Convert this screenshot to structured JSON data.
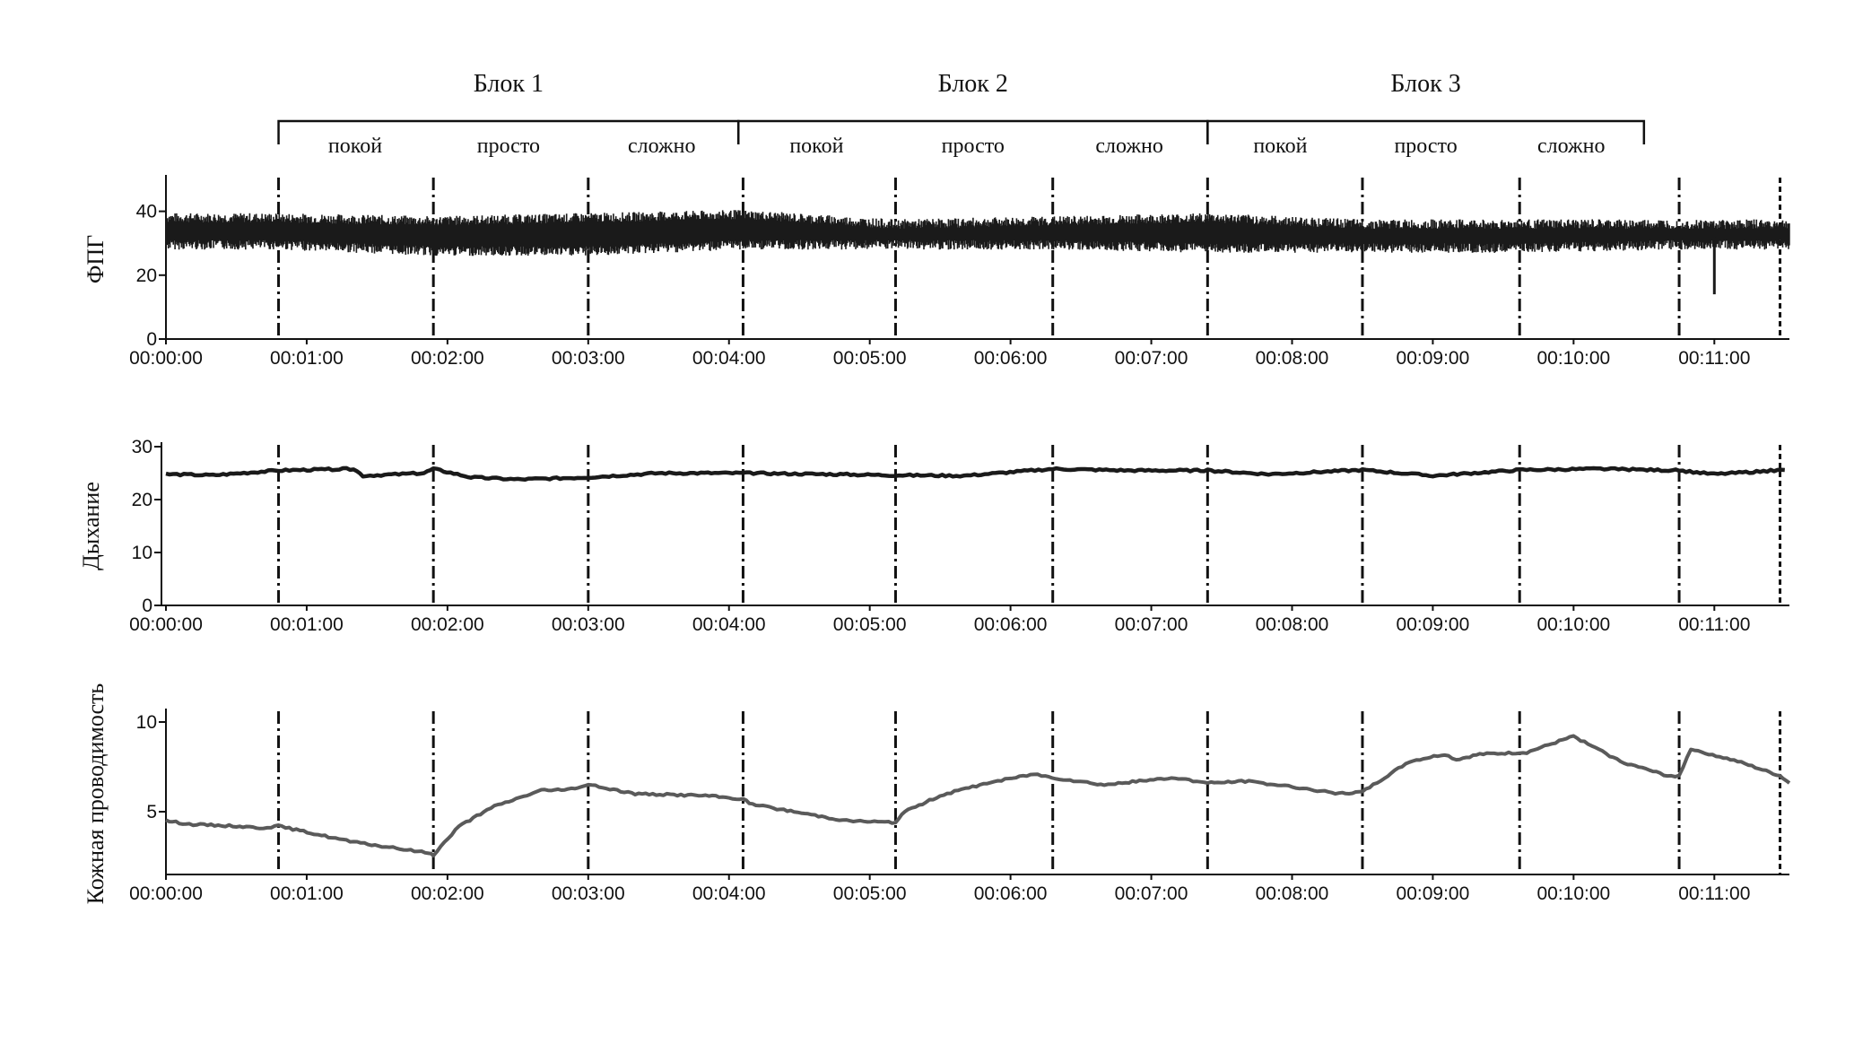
{
  "blocks": [
    {
      "title": "Блок 1",
      "phases": [
        "покой",
        "просто",
        "сложно"
      ],
      "start_s": 48,
      "end_s": 244
    },
    {
      "title": "Блок 2",
      "phases": [
        "покой",
        "просто",
        "сложно"
      ],
      "start_s": 244,
      "end_s": 444
    },
    {
      "title": "Блок 3",
      "phases": [
        "покой",
        "просто",
        "сложно"
      ],
      "start_s": 444,
      "end_s": 630
    }
  ],
  "chart_data": [
    {
      "type": "line",
      "ylabel": "ФПГ",
      "xlabel": "",
      "ylim": [
        0,
        50
      ],
      "xlim_s": [
        0,
        692
      ],
      "yticks": [
        "0",
        "20",
        "40"
      ],
      "xticks": [
        "00:00:00",
        "00:01:00",
        "00:02:00",
        "00:03:00",
        "00:04:00",
        "00:05:00",
        "00:06:00",
        "00:07:00",
        "00:08:00",
        "00:09:00",
        "00:10:00",
        "00:11:00"
      ],
      "markers_s": [
        48,
        114,
        180,
        246,
        311,
        378,
        444,
        510,
        577,
        645,
        688
      ],
      "series": [
        {
          "style": "band",
          "x_s": [
            0,
            48,
            114,
            180,
            246,
            311,
            378,
            444,
            510,
            577,
            645,
            692
          ],
          "upper": [
            38,
            38,
            37,
            38,
            39,
            36,
            37,
            38,
            36,
            36,
            36,
            36
          ],
          "lower": [
            31,
            31,
            29,
            29,
            31,
            31,
            31,
            30,
            30,
            30,
            31,
            31
          ],
          "spikes": [
            {
              "x_s": 660,
              "low": 14
            }
          ]
        }
      ]
    },
    {
      "type": "line",
      "ylabel": "Дыхание",
      "xlabel": "",
      "ylim": [
        0,
        30
      ],
      "xlim_s": [
        0,
        692
      ],
      "yticks": [
        "0",
        "10",
        "20",
        "30"
      ],
      "xticks": [
        "00:00:00",
        "00:01:00",
        "00:02:00",
        "00:03:00",
        "00:04:00",
        "00:05:00",
        "00:06:00",
        "00:07:00",
        "00:08:00",
        "00:09:00",
        "00:10:00",
        "00:11:00"
      ],
      "markers_s": [
        48,
        114,
        180,
        246,
        311,
        378,
        444,
        510,
        577,
        645,
        688
      ],
      "series": [
        {
          "style": "line",
          "x_s": [
            0,
            20,
            48,
            80,
            84,
            110,
            114,
            130,
            150,
            180,
            210,
            246,
            280,
            311,
            340,
            378,
            410,
            444,
            470,
            510,
            540,
            577,
            610,
            645,
            660,
            690
          ],
          "y": [
            24.8,
            24.6,
            25.5,
            25.8,
            24.5,
            25,
            25.8,
            24.2,
            23.8,
            24.2,
            25,
            25,
            24.8,
            24.6,
            24.5,
            25.8,
            25.5,
            25.5,
            24.8,
            25.6,
            24.5,
            25.6,
            25.8,
            25.5,
            24.8,
            25.6
          ]
        }
      ]
    },
    {
      "type": "line",
      "ylabel": "Кожная проводимость",
      "xlabel": "",
      "ylim": [
        1.5,
        10.5
      ],
      "xlim_s": [
        0,
        692
      ],
      "yticks": [
        "5",
        "10"
      ],
      "xticks": [
        "00:00:00",
        "00:01:00",
        "00:02:00",
        "00:03:00",
        "00:04:00",
        "00:05:00",
        "00:06:00",
        "00:07:00",
        "00:08:00",
        "00:09:00",
        "00:10:00",
        "00:11:00"
      ],
      "markers_s": [
        48,
        114,
        180,
        246,
        311,
        378,
        444,
        510,
        577,
        645,
        688
      ],
      "series": [
        {
          "style": "line",
          "x_s": [
            0,
            10,
            30,
            40,
            48,
            80,
            112,
            114,
            125,
            140,
            160,
            170,
            180,
            200,
            230,
            246,
            250,
            290,
            311,
            315,
            330,
            350,
            370,
            378,
            400,
            430,
            444,
            460,
            480,
            500,
            510,
            530,
            545,
            550,
            560,
            580,
            600,
            620,
            640,
            645,
            650,
            670,
            688,
            692
          ],
          "y": [
            4.5,
            4.3,
            4.2,
            4.1,
            4.2,
            3.3,
            2.7,
            2.6,
            4.2,
            5.3,
            6.2,
            6.2,
            6.5,
            6.0,
            5.9,
            5.7,
            5.4,
            4.5,
            4.4,
            5.0,
            5.9,
            6.6,
            7.1,
            6.9,
            6.5,
            6.9,
            6.6,
            6.7,
            6.4,
            6.0,
            6.1,
            7.8,
            8.2,
            7.9,
            8.2,
            8.3,
            9.2,
            7.8,
            7.0,
            7.0,
            8.5,
            7.8,
            7.0,
            6.6
          ]
        }
      ]
    }
  ]
}
